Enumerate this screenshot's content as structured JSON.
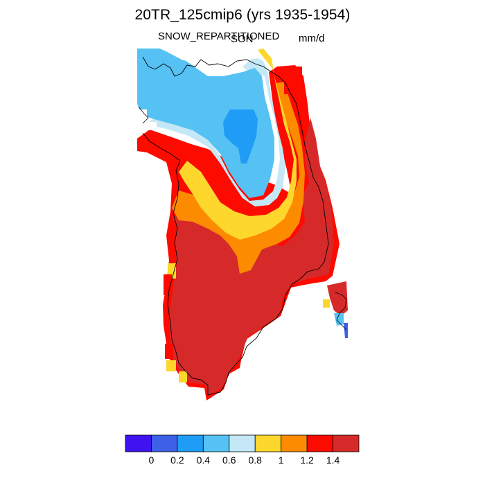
{
  "plot": {
    "title": "20TR_125cmip6 (yrs 1935-1954)",
    "variable": "SNOW_REPARTITIONED",
    "season": "SON",
    "units": "mm/d"
  },
  "colorbar": {
    "colors": [
      "#3f12f0",
      "#3d60e6",
      "#1f9cf5",
      "#56c1f3",
      "#c4e8f5",
      "#fdd72b",
      "#fd8b00",
      "#fd0a00",
      "#d62a2a"
    ],
    "tick_labels": [
      "0",
      "0.2",
      "0.4",
      "0.6",
      "0.8",
      "1",
      "1.2",
      "1.4"
    ]
  }
}
